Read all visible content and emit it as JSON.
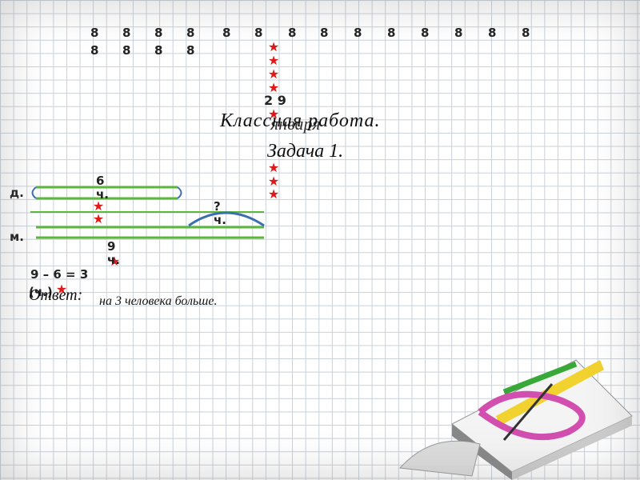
{
  "digits": {
    "rows": [
      [
        "8",
        "8",
        "8",
        "8",
        "8",
        "8",
        "8",
        "8",
        "8",
        "8",
        "8",
        "8",
        "8",
        "8"
      ],
      [
        "8",
        "8",
        "8",
        "8"
      ]
    ]
  },
  "date": {
    "day": "2 9",
    "month": "января"
  },
  "title": "Классная работа.",
  "task": "Задача 1.",
  "diagram": {
    "labels": {
      "d": "д.",
      "m": "м.",
      "d_count": "6 ч.",
      "question": "? ч.",
      "m_count": "9 ч."
    }
  },
  "solution": {
    "equation": "9 – 6 = 3",
    "unit": "(ч.)"
  },
  "answer": {
    "label": "Ответ:",
    "text": "на 3 человека больше."
  }
}
